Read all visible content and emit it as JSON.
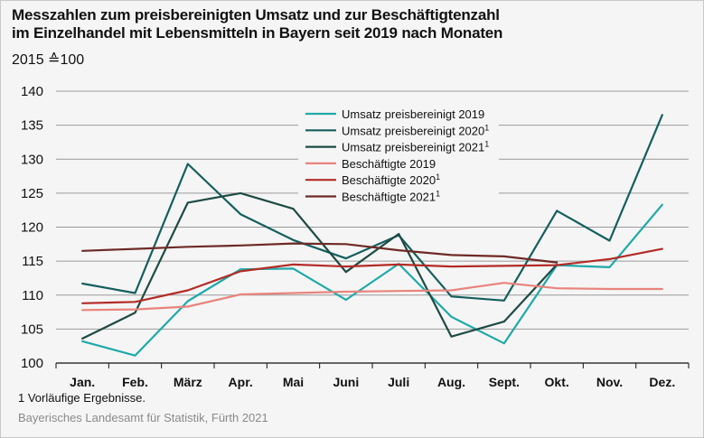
{
  "title_line1": "Messzahlen zum preisbereinigten Umsatz und zur Beschäftigtenzahl",
  "title_line2": "im Einzelhandel mit Lebensmitteln in Bayern seit 2019 nach Monaten",
  "subtitle": "2015 ≙100",
  "footnote": "1  Vorläufige Ergebnisse.",
  "source": "Bayerisches Landesamt für Statistik, Fürth 2021",
  "chart_data": {
    "type": "line",
    "categories": [
      "Jan.",
      "Feb.",
      "März",
      "Apr.",
      "Mai",
      "Juni",
      "Juli",
      "Aug.",
      "Sept.",
      "Okt.",
      "Nov.",
      "Dez."
    ],
    "ylim": [
      100,
      140
    ],
    "yticks": [
      100,
      105,
      110,
      115,
      120,
      125,
      130,
      135,
      140
    ],
    "grid": "horizontal",
    "legend_position": "top-right",
    "series": [
      {
        "name": "Umsatz preisbereinigt 2019",
        "sup": "",
        "color": "#1fa9a9",
        "values": [
          103.2,
          101.1,
          109.1,
          113.8,
          113.9,
          109.3,
          114.6,
          106.8,
          102.9,
          114.4,
          114.1,
          123.3
        ]
      },
      {
        "name": "Umsatz preisbereinigt 2020",
        "sup": "1",
        "color": "#155e5e",
        "values": [
          111.7,
          110.3,
          129.3,
          121.9,
          118.1,
          115.4,
          118.8,
          109.8,
          109.2,
          122.4,
          118.0,
          136.5
        ]
      },
      {
        "name": "Umsatz preisbereinigt 2021",
        "sup": "1",
        "color": "#1e4a44",
        "values": [
          103.6,
          107.4,
          123.6,
          125.0,
          122.7,
          113.4,
          119.0,
          103.9,
          106.1,
          114.5,
          null,
          null
        ]
      },
      {
        "name": "Beschäftigte 2019",
        "sup": "",
        "color": "#e8847c",
        "values": [
          107.8,
          107.9,
          108.3,
          110.1,
          110.3,
          110.5,
          110.6,
          110.7,
          111.8,
          111.0,
          110.9,
          110.9
        ]
      },
      {
        "name": "Beschäftigte 2020",
        "sup": "1",
        "color": "#b32b26",
        "values": [
          108.8,
          109.0,
          110.7,
          113.5,
          114.5,
          114.2,
          114.5,
          114.2,
          114.3,
          114.4,
          115.3,
          116.8
        ]
      },
      {
        "name": "Beschäftigte 2021",
        "sup": "1",
        "color": "#6e2a26",
        "values": [
          116.5,
          116.8,
          117.1,
          117.3,
          117.6,
          117.5,
          116.6,
          115.9,
          115.7,
          114.8,
          null,
          null
        ]
      }
    ]
  }
}
